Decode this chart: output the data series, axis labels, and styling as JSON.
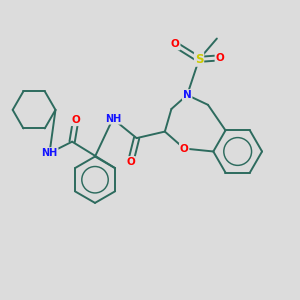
{
  "bg_color": "#dcdcdc",
  "bond_color": "#2d6b5e",
  "bond_width": 1.4,
  "atom_colors": {
    "N": "#1414ff",
    "O": "#ff0000",
    "S": "#cccc00",
    "C": "#2d6b5e"
  },
  "font_size_atom": 7.5,
  "fig_size": [
    3.0,
    3.0
  ],
  "dpi": 100
}
